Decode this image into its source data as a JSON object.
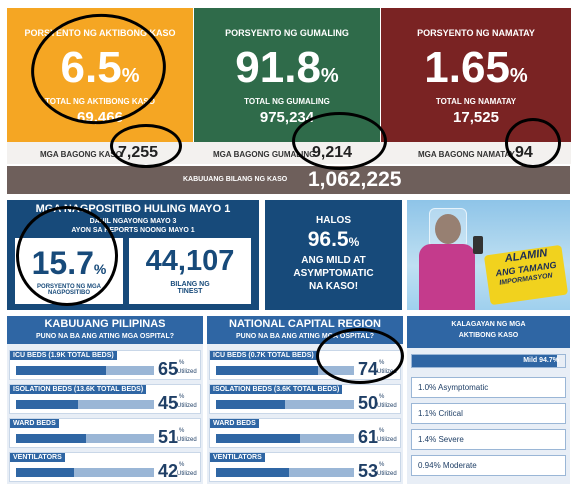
{
  "active": {
    "header": "PORSYENTO NG AKTIBONG KASO",
    "percent": "6.5",
    "pct_sign": "%",
    "total_label": "TOTAL NG AKTIBONG KASO",
    "total": "69,466",
    "new_label": "MGA BAGONG KASO",
    "new": "7,255",
    "color": "#f5a623"
  },
  "recovered": {
    "header": "PORSYENTO NG GUMALING",
    "percent": "91.8",
    "pct_sign": "%",
    "total_label": "TOTAL NG GUMALING",
    "total": "975,234",
    "new_label": "MGA BAGONG GUMALING",
    "new": "9,214",
    "color": "#2f6b4a"
  },
  "deaths": {
    "header": "PORSYENTO NG NAMATAY",
    "percent": "1.65",
    "pct_sign": "%",
    "total_label": "TOTAL NG NAMATAY",
    "total": "17,525",
    "new_label": "MGA BAGONG NAMATAY",
    "new": "94",
    "color": "#7a2323"
  },
  "total_cases": {
    "label": "KABUUANG BILANG NG KASO",
    "value": "1,062,225"
  },
  "positivity": {
    "title": "MGA NAGPOSITIBO HULING MAYO 1",
    "sub1": "DAHIL NGAYONG MAYO 3",
    "sub2": "AYON SA REPORTS NOONG MAYO 1",
    "percent": "15.7",
    "pct_sign": "%",
    "percent_label": "PORSYENTO NG MGA NAGPOSITIBO",
    "tested": "44,107",
    "tested_label": "BILANG NG TINEST"
  },
  "mild": {
    "halos": "HALOS",
    "percent": "96.5",
    "pct_sign": "%",
    "line1": "ANG MILD AT",
    "line2": "ASYMPTOMATIC",
    "line3": "NA KASO!"
  },
  "promo": {
    "line1": "ALAMIN",
    "line2": "ANG TAMANG",
    "line3": "IMPORMASYON"
  },
  "ph": {
    "title": "KABUUANG PILIPINAS",
    "subtitle": "PUNO NA BA ANG ATING MGA OSPITAL?",
    "rows": [
      {
        "label": "ICU BEDS (1.9K TOTAL BEDS)",
        "pct": "65",
        "fill": 0.65
      },
      {
        "label": "ISOLATION BEDS (13.6K TOTAL BEDS)",
        "pct": "45",
        "fill": 0.45
      },
      {
        "label": "WARD BEDS",
        "pct": "51",
        "fill": 0.51
      },
      {
        "label": "VENTILATORS",
        "pct": "42",
        "fill": 0.42
      }
    ]
  },
  "ncr": {
    "title": "NATIONAL CAPITAL REGION",
    "subtitle": "PUNO NA BA ANG ATING MGA OSPITAL?",
    "rows": [
      {
        "label": "ICU BEDS (0.7K TOTAL BEDS)",
        "pct": "74",
        "fill": 0.74
      },
      {
        "label": "ISOLATION BEDS (3.6K TOTAL BEDS)",
        "pct": "50",
        "fill": 0.5
      },
      {
        "label": "WARD BEDS",
        "pct": "61",
        "fill": 0.61
      },
      {
        "label": "VENTILATORS",
        "pct": "53",
        "fill": 0.53
      }
    ]
  },
  "util_sign": "%",
  "util_label": "Utilized",
  "condition": {
    "title1": "KALAGAYAN NG MGA",
    "title2": "AKTIBONG KASO",
    "mild": "Mild 94.7%",
    "mild_fill": 0.947,
    "items": [
      "1.0% Asymptomatic",
      "1.1% Critical",
      "1.4% Severe",
      "0.94% Moderate"
    ]
  }
}
